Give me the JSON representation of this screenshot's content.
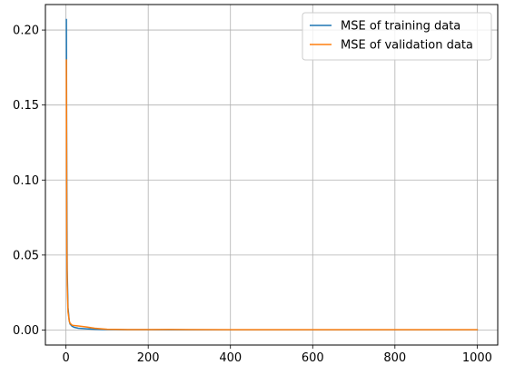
{
  "chart_data": {
    "type": "line",
    "xlim": [
      -50,
      1050
    ],
    "ylim": [
      -0.01,
      0.217
    ],
    "xticks": [
      0,
      200,
      400,
      600,
      800,
      1000
    ],
    "yticks": [
      0.0,
      0.05,
      0.1,
      0.15,
      0.2
    ],
    "ytick_labels": [
      "0.00",
      "0.05",
      "0.10",
      "0.15",
      "0.20"
    ],
    "grid": true,
    "legend_position": "upper right",
    "series": [
      {
        "name": "MSE of training data",
        "color": "#1f77b4",
        "x": [
          1,
          2,
          3,
          5,
          8,
          10,
          15,
          20,
          30,
          50,
          70,
          100,
          150,
          200,
          300,
          400,
          500,
          600,
          700,
          800,
          900,
          1000
        ],
        "y": [
          0.207,
          0.1,
          0.04,
          0.015,
          0.006,
          0.004,
          0.0025,
          0.0018,
          0.0012,
          0.0008,
          0.0005,
          0.0003,
          0.0002,
          0.0002,
          0.0001,
          0.0001,
          0.0001,
          0.0001,
          0.0001,
          0.0001,
          0.0001,
          0.0001
        ]
      },
      {
        "name": "MSE of validation data",
        "color": "#ff7f0e",
        "x": [
          1,
          2,
          3,
          5,
          8,
          10,
          15,
          20,
          30,
          50,
          70,
          100,
          150,
          200,
          250,
          300,
          400,
          500,
          600,
          700,
          800,
          900,
          1000
        ],
        "y": [
          0.18,
          0.06,
          0.03,
          0.012,
          0.006,
          0.0045,
          0.0032,
          0.003,
          0.0027,
          0.002,
          0.0012,
          0.0005,
          0.0003,
          0.0003,
          0.0004,
          0.0003,
          0.0002,
          0.0002,
          0.0002,
          0.0002,
          0.0002,
          0.0002,
          0.0002
        ]
      }
    ]
  }
}
